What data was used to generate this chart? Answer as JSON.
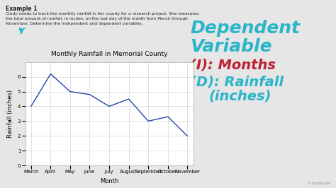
{
  "title": "Monthly Rainfall in Memorial County",
  "xlabel": "Month",
  "ylabel": "Rainfall (inches)",
  "months": [
    "March",
    "April",
    "May",
    "June",
    "July",
    "August",
    "September",
    "October",
    "November"
  ],
  "rainfall": [
    4.0,
    6.2,
    5.0,
    4.8,
    4.0,
    4.5,
    3.0,
    3.3,
    2.0
  ],
  "line_color": "#2244aa",
  "bg_color": "#ffffff",
  "grid_color": "#cccccc",
  "ylim": [
    0,
    7
  ],
  "yticks": [
    0,
    1,
    2,
    3,
    4,
    5,
    6
  ],
  "title_fontsize": 6.5,
  "axis_fontsize": 6,
  "tick_fontsize": 5,
  "text_color": "#222222",
  "outer_bg": "#e6e6e6",
  "teal_color": "#2ab5c8",
  "red_color": "#bb2233",
  "annotation_dep": "Dependent",
  "annotation_var": "Variable",
  "annotation_i": "(I): Months",
  "annotation_d": "(D): Rainfall",
  "annotation_inches": "(inches)",
  "example_label": "Example 1",
  "story_text1": "Cindy needs to track the monthly rainfall in her county for a research project. She measures",
  "story_text2": "the total amount of rainfall, in inches, on the last day of the month from March through",
  "story_text3": "November. Determine the independent and dependent variables.",
  "watermark": "© Study.com"
}
